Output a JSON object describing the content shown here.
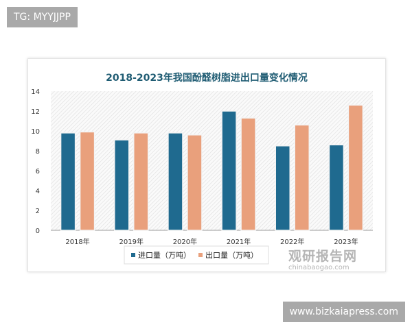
{
  "tags": {
    "top_left": "TG: MYYJJPP",
    "bottom_right": "www.bizkaiapress.com"
  },
  "watermark": {
    "name": "观研报告网",
    "url": "chinabaogao.com"
  },
  "colors": {
    "import": "#1f6a8f",
    "export": "#e9a07c",
    "title": "#1f5c73"
  },
  "chart_data": {
    "type": "bar",
    "title": "2018-2023年我国酚醛树脂进出口量变化情况",
    "categories": [
      "2018年",
      "2019年",
      "2020年",
      "2021年",
      "2022年",
      "2023年"
    ],
    "series": [
      {
        "name": "进口量（万吨）",
        "values": [
          9.8,
          9.1,
          9.8,
          12.0,
          8.5,
          8.6
        ]
      },
      {
        "name": "出口量（万吨）",
        "values": [
          9.9,
          9.8,
          9.6,
          11.3,
          10.6,
          12.6
        ]
      }
    ],
    "ylim": [
      0,
      14
    ],
    "yticks": [
      "0",
      "2",
      "4",
      "6",
      "8",
      "10",
      "12",
      "14"
    ],
    "legend": "bottom",
    "grid": false
  }
}
